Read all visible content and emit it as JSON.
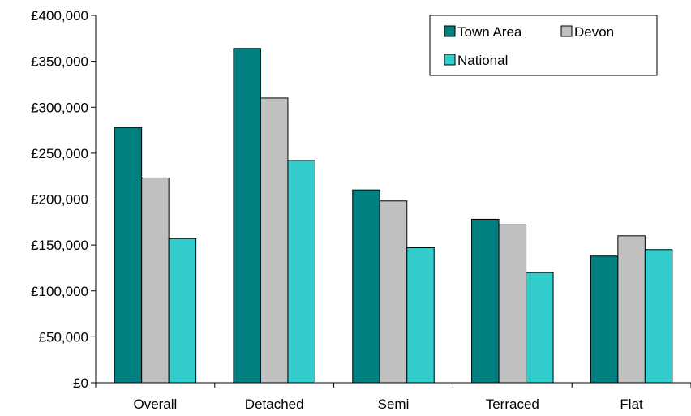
{
  "chart_data": {
    "type": "bar",
    "categories": [
      "Overall",
      "Detached",
      "Semi",
      "Terraced",
      "Flat"
    ],
    "series": [
      {
        "name": "Town Area",
        "color": "#008080",
        "values": [
          278000,
          364000,
          210000,
          178000,
          138000
        ]
      },
      {
        "name": "Devon",
        "color": "#c0c0c0",
        "values": [
          223000,
          310000,
          198000,
          172000,
          160000
        ]
      },
      {
        "name": "National",
        "color": "#33cccc",
        "values": [
          157000,
          242000,
          147000,
          120000,
          145000
        ]
      }
    ],
    "ylim": [
      0,
      400000
    ],
    "yticks": [
      0,
      50000,
      100000,
      150000,
      200000,
      250000,
      300000,
      350000,
      400000
    ],
    "ytick_labels": [
      "£0",
      "£50,000",
      "£100,000",
      "£150,000",
      "£200,000",
      "£250,000",
      "£300,000",
      "£350,000",
      "£400,000"
    ],
    "legend_position": "top-right",
    "grid": false
  }
}
